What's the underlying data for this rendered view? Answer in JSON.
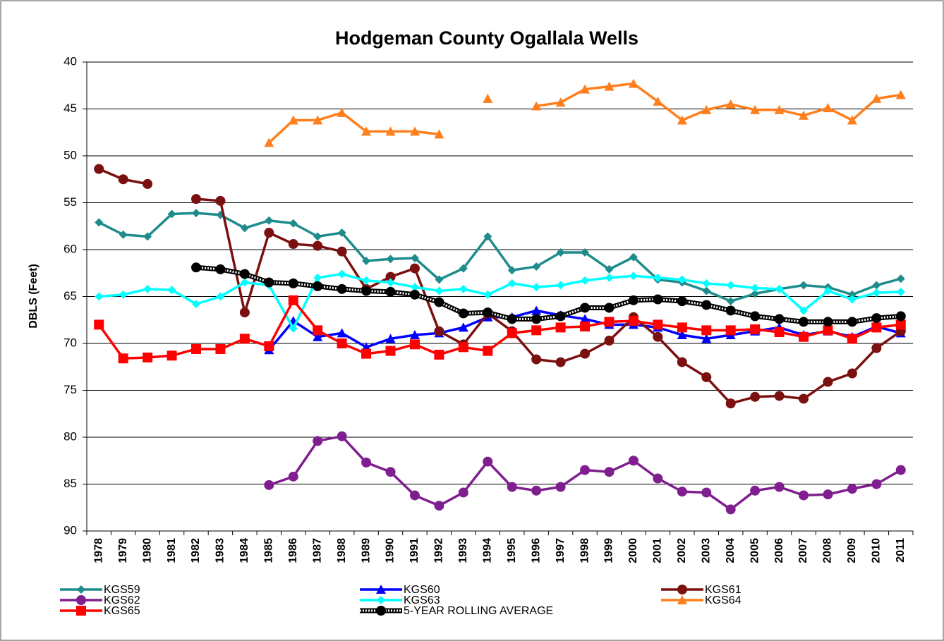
{
  "chart_data": {
    "type": "line",
    "title": "Hodgeman County Ogallala Wells",
    "y_label": "DBLS (Feet)",
    "categories": [
      "1978",
      "1979",
      "1980",
      "1981",
      "1982",
      "1983",
      "1984",
      "1985",
      "1986",
      "1987",
      "1988",
      "1989",
      "1990",
      "1991",
      "1992",
      "1993",
      "1994",
      "1995",
      "1996",
      "1997",
      "1998",
      "1999",
      "2000",
      "2001",
      "2002",
      "2003",
      "2004",
      "2005",
      "2006",
      "2007",
      "2008",
      "2009",
      "2010",
      "2011"
    ],
    "ylim": [
      40,
      90
    ],
    "yticks": [
      40,
      45,
      50,
      55,
      60,
      65,
      70,
      75,
      80,
      85,
      90
    ],
    "y_reversed": true,
    "grid": true,
    "legend": "bottom",
    "series": [
      {
        "name": "KGS59",
        "color": "#1e8c8c",
        "marker": "diamond",
        "values": [
          57.1,
          58.4,
          58.6,
          56.2,
          56.1,
          56.3,
          57.7,
          56.9,
          57.2,
          58.6,
          58.2,
          61.2,
          61.0,
          60.9,
          63.2,
          62.0,
          58.6,
          62.2,
          61.8,
          60.3,
          60.3,
          62.1,
          60.8,
          63.2,
          63.5,
          64.4,
          65.5,
          64.7,
          64.2,
          63.8,
          64.0,
          64.8,
          63.8,
          63.1
        ]
      },
      {
        "name": "KGS60",
        "color": "#0000ff",
        "marker": "triangle",
        "values": [
          null,
          null,
          null,
          null,
          null,
          null,
          null,
          70.7,
          67.6,
          69.3,
          68.9,
          70.4,
          69.5,
          69.1,
          68.9,
          68.3,
          67.2,
          67.2,
          66.5,
          67.0,
          67.4,
          68.0,
          68.0,
          68.3,
          69.1,
          69.5,
          69.1,
          68.7,
          68.3,
          69.1,
          68.7,
          69.3,
          68.2,
          68.9
        ]
      },
      {
        "name": "KGS61",
        "color": "#7b1010",
        "marker": "circle",
        "values": [
          51.4,
          52.5,
          53.0,
          null,
          54.6,
          54.8,
          66.7,
          58.2,
          59.4,
          59.6,
          60.2,
          64.2,
          62.9,
          62.0,
          68.7,
          70.1,
          66.8,
          68.7,
          71.7,
          72.0,
          71.1,
          69.7,
          67.2,
          69.3,
          72.0,
          73.6,
          76.4,
          75.7,
          75.6,
          75.9,
          74.1,
          73.2,
          70.5,
          68.7
        ]
      },
      {
        "name": "KGS62",
        "color": "#7f1f8f",
        "marker": "circle",
        "values": [
          null,
          null,
          null,
          null,
          null,
          null,
          null,
          85.1,
          84.2,
          80.4,
          79.9,
          82.7,
          83.7,
          86.2,
          87.3,
          85.9,
          82.6,
          85.3,
          85.7,
          85.3,
          83.5,
          83.7,
          82.5,
          84.4,
          85.8,
          85.9,
          87.7,
          85.7,
          85.3,
          86.2,
          86.1,
          85.5,
          85.0,
          83.5
        ]
      },
      {
        "name": "KGS63",
        "color": "#00ffff",
        "marker": "diamond",
        "values": [
          65.0,
          64.8,
          64.2,
          64.3,
          65.8,
          65.0,
          63.5,
          63.8,
          68.4,
          63.0,
          62.6,
          63.3,
          63.5,
          64.0,
          64.4,
          64.2,
          64.8,
          63.6,
          64.0,
          63.8,
          63.3,
          63.0,
          62.8,
          63.0,
          63.2,
          63.6,
          63.8,
          64.1,
          64.2,
          66.5,
          64.4,
          65.3,
          64.6,
          64.5
        ]
      },
      {
        "name": "KGS64",
        "color": "#ff7f1e",
        "marker": "triangle",
        "values": [
          null,
          null,
          null,
          null,
          null,
          null,
          null,
          48.6,
          46.2,
          46.2,
          45.4,
          47.4,
          47.4,
          47.4,
          47.7,
          null,
          43.9,
          null,
          44.7,
          44.3,
          42.9,
          42.6,
          42.3,
          44.2,
          46.2,
          45.1,
          44.5,
          45.1,
          45.1,
          45.7,
          44.9,
          46.2,
          43.9,
          43.5
        ]
      },
      {
        "name": "KGS65",
        "color": "#ff0000",
        "marker": "square",
        "values": [
          68.0,
          71.6,
          71.5,
          71.3,
          70.6,
          70.6,
          69.5,
          70.3,
          65.4,
          68.6,
          70.0,
          71.1,
          70.8,
          70.1,
          71.2,
          70.4,
          70.8,
          68.9,
          68.6,
          68.3,
          68.2,
          67.7,
          67.6,
          68.0,
          68.3,
          68.6,
          68.6,
          68.5,
          68.8,
          69.3,
          68.6,
          69.5,
          68.3,
          68.0
        ]
      },
      {
        "name": "5-YEAR ROLLING AVERAGE",
        "color": "#000000",
        "marker": "circle",
        "line_style": "dotted",
        "values": [
          null,
          null,
          null,
          null,
          61.9,
          62.1,
          62.6,
          63.5,
          63.6,
          63.9,
          64.2,
          64.4,
          64.5,
          64.8,
          65.6,
          66.8,
          66.7,
          67.4,
          67.4,
          67.1,
          66.2,
          66.2,
          65.4,
          65.3,
          65.5,
          65.9,
          66.5,
          67.1,
          67.4,
          67.7,
          67.7,
          67.7,
          67.3,
          67.1
        ]
      }
    ]
  }
}
